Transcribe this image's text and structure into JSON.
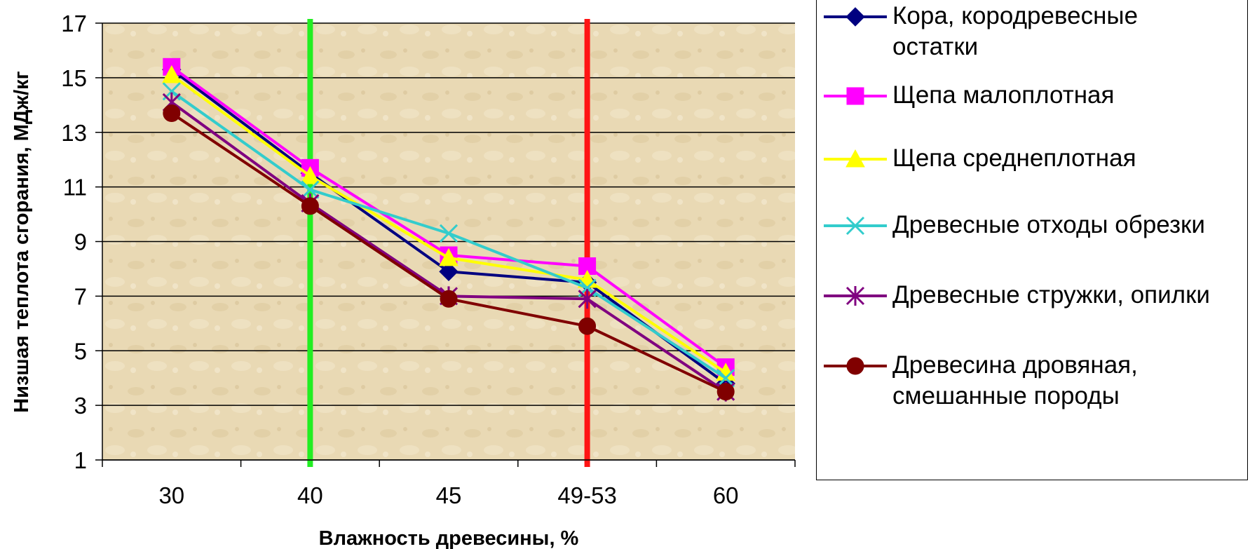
{
  "chart_data": {
    "type": "line",
    "categories": [
      "30",
      "40",
      "45",
      "49-53",
      "60"
    ],
    "xlabel": "Влажность древесины, %",
    "ylabel": "Низшая теплота сгорания, МДж/кг",
    "ylim": [
      1,
      17
    ],
    "yticks": [
      1,
      3,
      5,
      7,
      9,
      11,
      13,
      15,
      17
    ],
    "grid": "horizontal",
    "legend_position": "right",
    "plot_background": "#e9d9b4",
    "vertical_markers": [
      {
        "at": "40",
        "color": "#22ee22"
      },
      {
        "at": "49-53",
        "color": "#ff1414"
      }
    ],
    "series": [
      {
        "name": "Кора, кородревесные\nостатки",
        "marker": "diamond",
        "color": "#000080",
        "values": [
          15.3,
          11.5,
          7.9,
          7.5,
          3.8
        ]
      },
      {
        "name": "Щепа малоплотная",
        "marker": "square",
        "color": "#ff00ff",
        "values": [
          15.4,
          11.7,
          8.5,
          8.1,
          4.4
        ]
      },
      {
        "name": "Щепа среднеплотная",
        "marker": "triangle",
        "color": "#ffff00",
        "values": [
          15.1,
          11.4,
          8.4,
          7.6,
          4.2
        ]
      },
      {
        "name": "Древесные отходы обрезки",
        "marker": "x",
        "color": "#33cccc",
        "values": [
          14.5,
          10.9,
          9.3,
          7.3,
          4.0
        ]
      },
      {
        "name": "Древесные стружки, опилки",
        "marker": "asterisk",
        "color": "#800080",
        "values": [
          14.1,
          10.4,
          7.0,
          6.9,
          3.5
        ]
      },
      {
        "name": "Древесина дровяная,\nсмешанные породы",
        "marker": "circle",
        "color": "#800000",
        "values": [
          13.7,
          10.3,
          6.9,
          5.9,
          3.5
        ]
      }
    ]
  }
}
